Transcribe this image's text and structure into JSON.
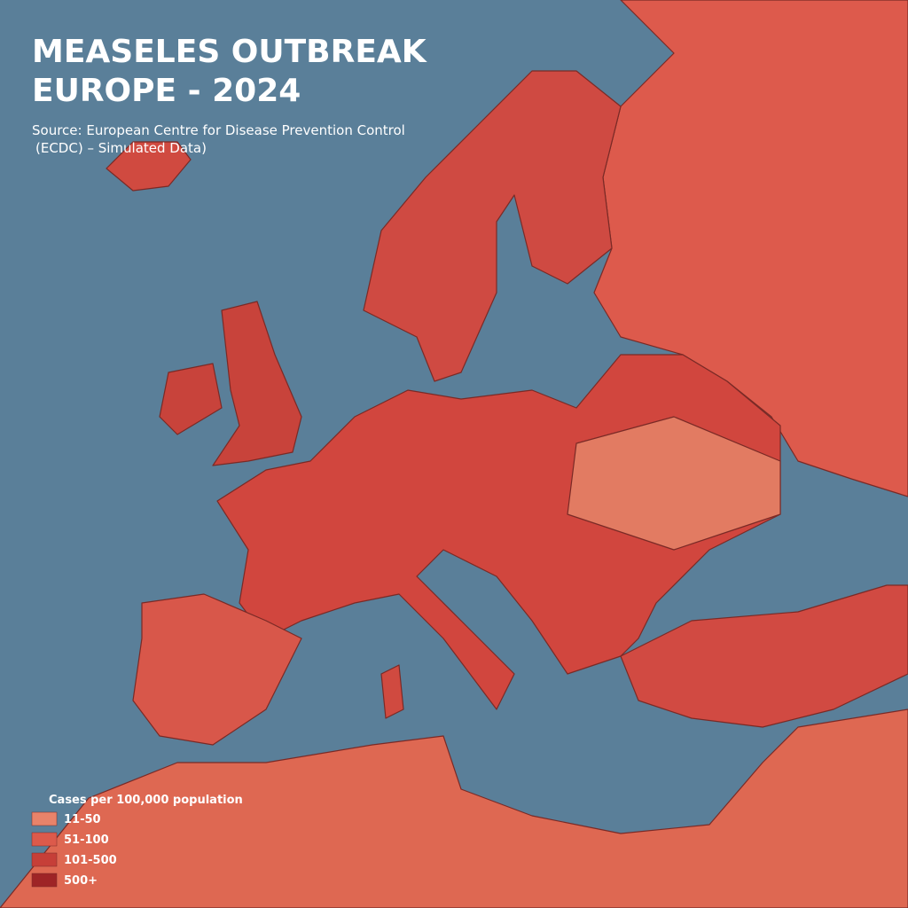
{
  "header": {
    "title_lines": [
      "MEASELES OUTBREAK",
      "EUROPE - 2024"
    ],
    "source_lines": [
      "Source: European Centre for Disease Prevention Control",
      "(ECDC) – Simulated Data)"
    ]
  },
  "legend": {
    "title": "Cases per 100,000 population",
    "items": [
      {
        "label": "11-50",
        "color": "#e8836a"
      },
      {
        "label": "51-100",
        "color": "#dc5a4b"
      },
      {
        "label": "101-500",
        "color": "#c63f38"
      },
      {
        "label": "500+",
        "color": "#9e2426"
      }
    ]
  }
}
